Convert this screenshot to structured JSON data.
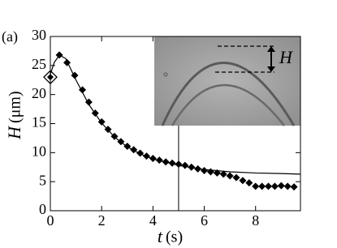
{
  "chart_data": {
    "type": "scatter",
    "panel_label": "(a)",
    "x_label": {
      "symbol": "t",
      "unit": "(s)"
    },
    "y_label": {
      "symbol": "H",
      "unit": "(μm)"
    },
    "xlim": [
      0,
      9.75
    ],
    "ylim": [
      0,
      30
    ],
    "xticks": [
      0,
      2,
      4,
      6,
      8
    ],
    "yticks": [
      0,
      5,
      10,
      15,
      20,
      25,
      30
    ],
    "marker_x": 5,
    "inset_label": "H",
    "series": [
      {
        "color": "#000000",
        "marker": "diamond",
        "x": [
          0.35,
          0.65,
          0.95,
          1.25,
          1.5,
          1.75,
          2.0,
          2.25,
          2.5,
          2.75,
          3.0,
          3.25,
          3.5,
          3.75,
          4.0,
          4.25,
          4.5,
          4.75,
          5.0,
          5.25,
          5.5,
          5.75,
          6.0,
          6.25,
          6.5,
          6.75,
          7.0,
          7.25,
          7.5,
          7.75,
          8.0,
          8.25,
          8.5,
          8.75,
          9.0,
          9.25,
          9.5
        ],
        "values": [
          26.8,
          25.5,
          23.3,
          20.8,
          18.7,
          16.8,
          15.3,
          14.0,
          12.8,
          11.9,
          11.1,
          10.5,
          9.9,
          9.4,
          9.0,
          8.7,
          8.4,
          8.2,
          8.0,
          7.8,
          7.5,
          7.2,
          6.9,
          6.7,
          6.5,
          6.3,
          6.0,
          5.7,
          5.2,
          4.8,
          4.2,
          4.2,
          4.2,
          4.2,
          4.3,
          4.2,
          4.1
        ]
      },
      {
        "color": "#000000",
        "marker": "open-diamond",
        "x": [
          0
        ],
        "values": [
          23
        ]
      },
      {
        "color": "#000000",
        "marker": "line",
        "x": [
          0,
          0.15,
          0.35,
          0.6,
          1,
          1.5,
          2,
          2.5,
          3,
          3.5,
          4,
          5,
          6,
          7,
          8,
          9,
          9.75
        ],
        "values": [
          23.5,
          25.5,
          26.8,
          26.2,
          22.5,
          18.3,
          15.1,
          12.7,
          11,
          9.8,
          8.9,
          7.8,
          7.1,
          6.7,
          6.5,
          6.4,
          6.3
        ]
      }
    ]
  }
}
